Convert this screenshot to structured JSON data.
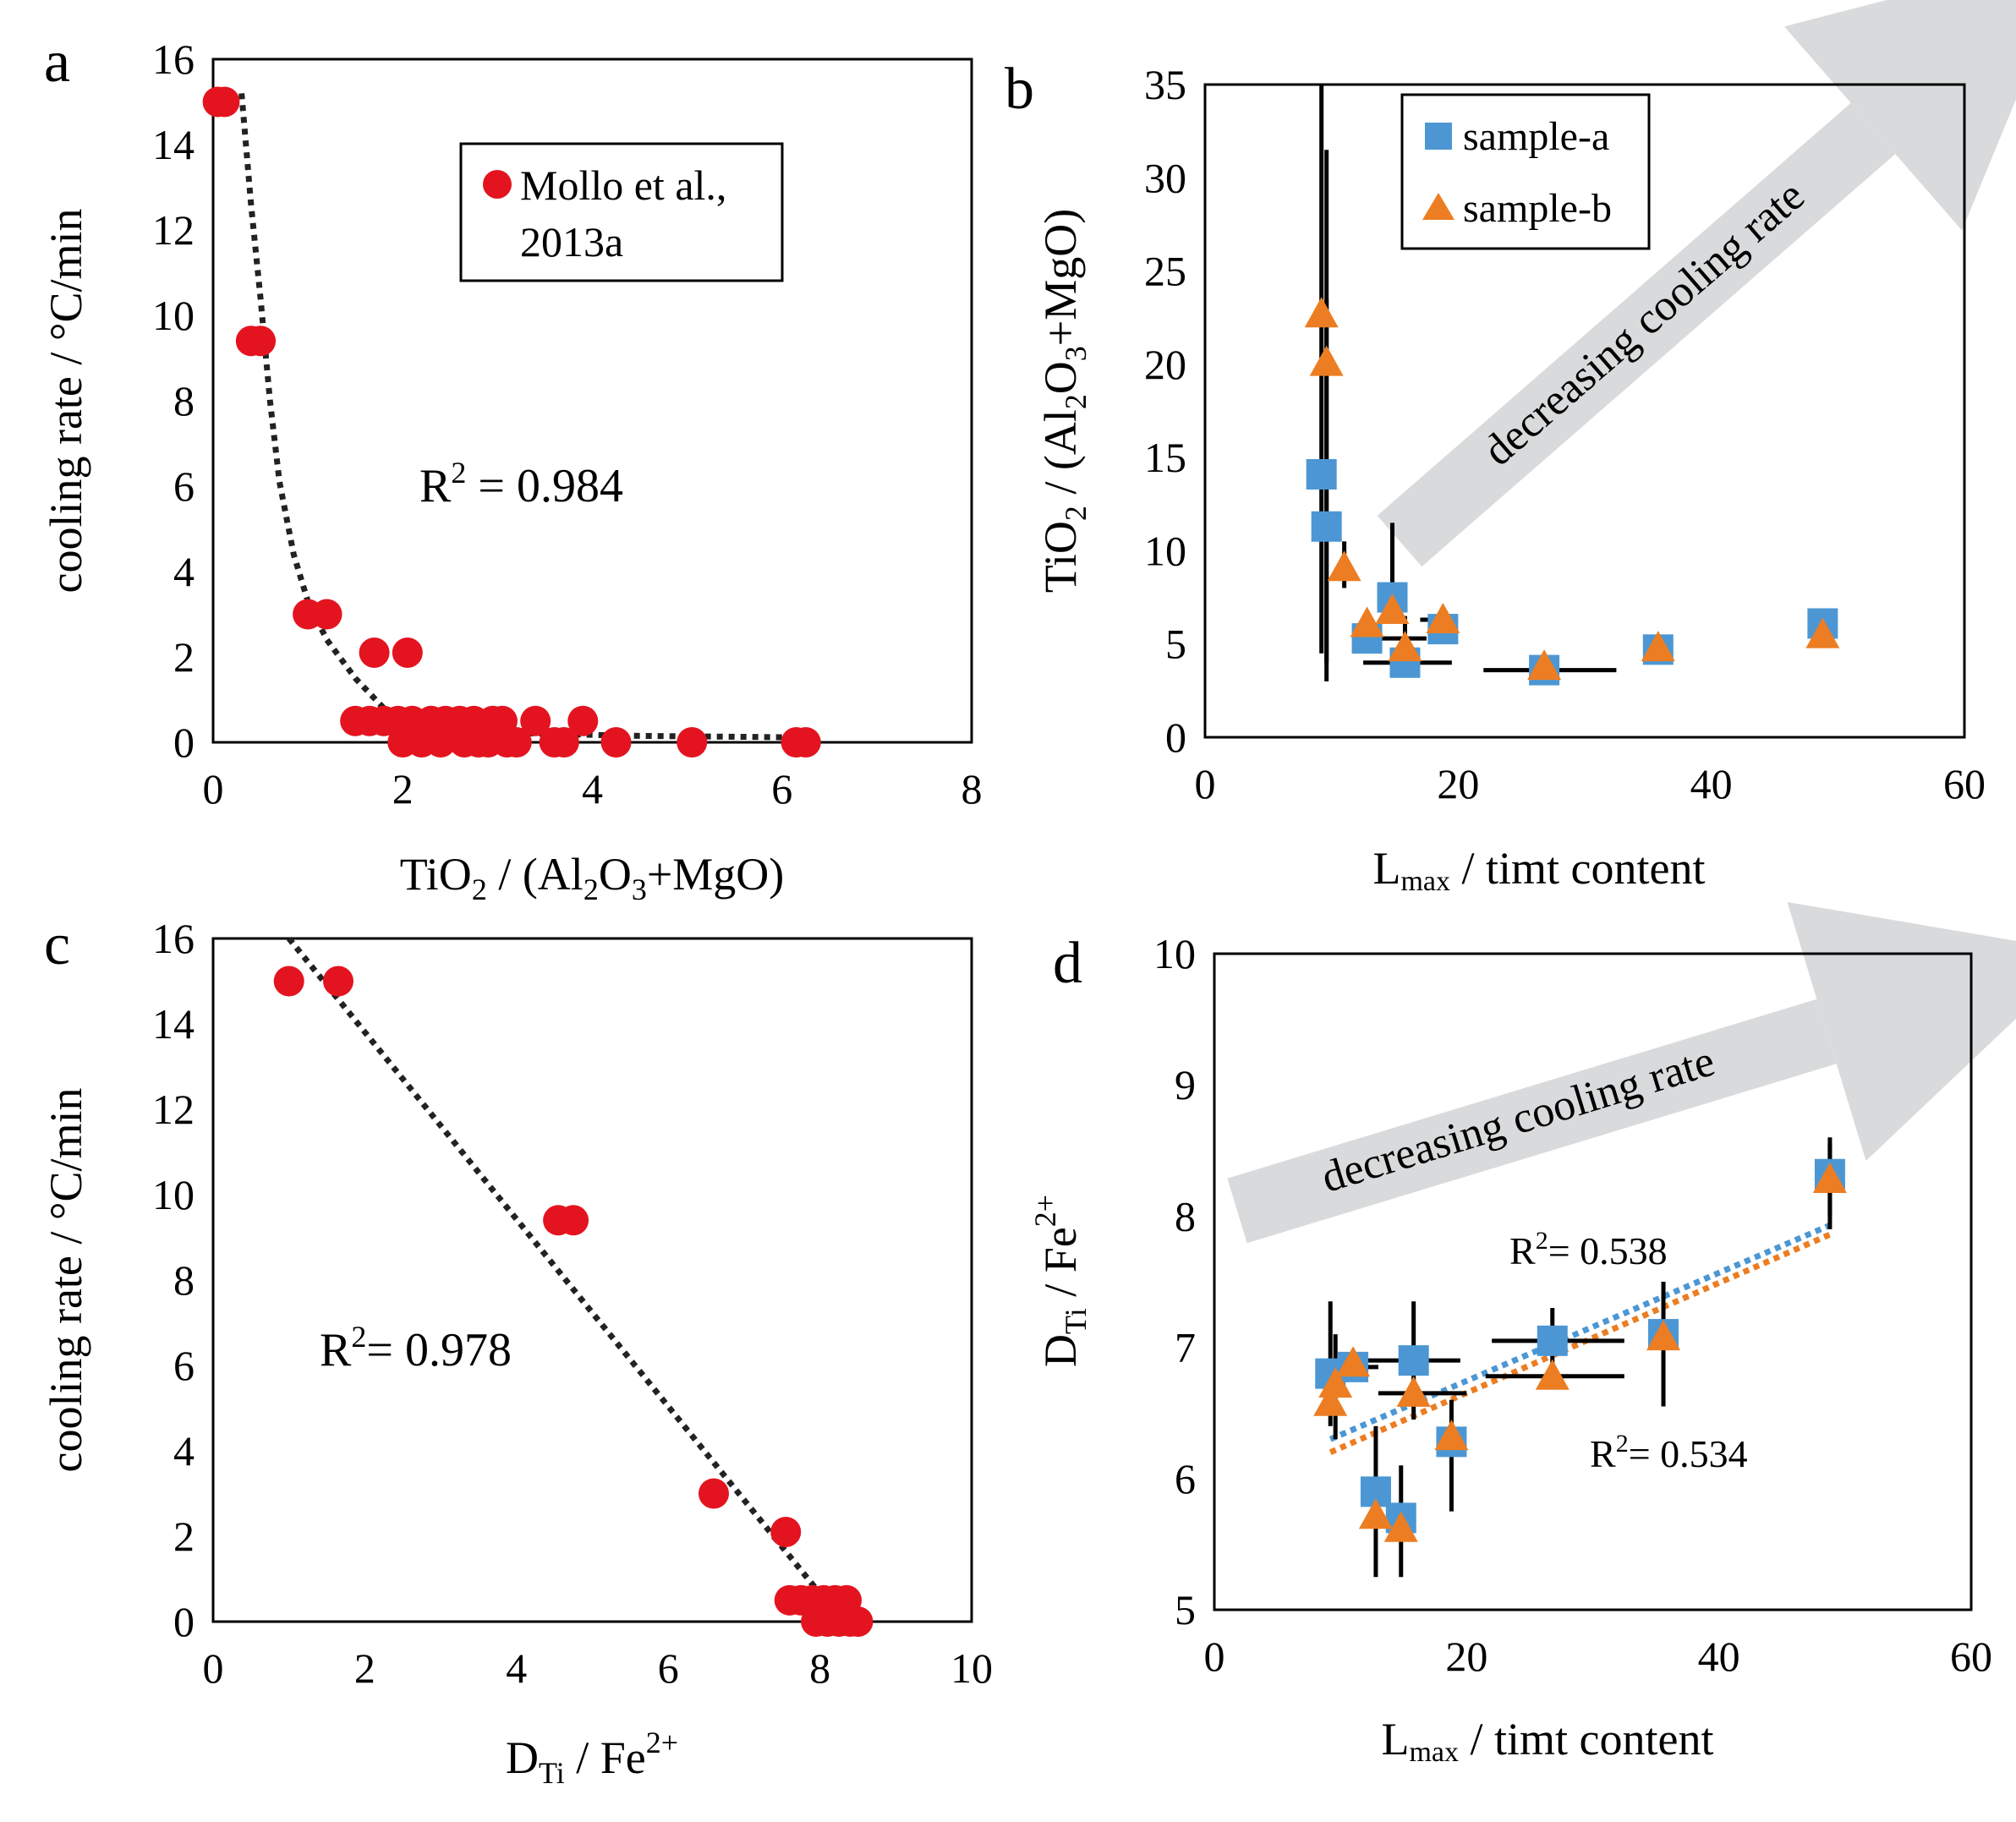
{
  "colors": {
    "red": "#e3141f",
    "blue": "#4c97d3",
    "orange": "#ec7d22",
    "arrow": "#d9dadb",
    "trend": "#222222"
  },
  "chart_data": [
    {
      "panel": "a",
      "type": "scatter",
      "xlabel": {
        "main": "TiO",
        "s1": "2",
        "mid": " / (Al",
        "s2": "2",
        "o": "O",
        "s3": "3",
        "end": "+MgO)"
      },
      "ylabel": "cooling rate / °C/min",
      "xlim": [
        0,
        8
      ],
      "ylim": [
        0,
        16
      ],
      "xticks": [
        "0",
        "2",
        "4",
        "6",
        "8"
      ],
      "yticks": [
        "0",
        "2",
        "4",
        "6",
        "8",
        "10",
        "12",
        "14",
        "16"
      ],
      "legend": {
        "line1": "Mollo et al.,",
        "line2": "2013a"
      },
      "r2": {
        "base": "R",
        "sup": "2",
        "rest": " = 0.984"
      },
      "points": [
        [
          0.05,
          15
        ],
        [
          0.12,
          15
        ],
        [
          0.4,
          9.4
        ],
        [
          0.5,
          9.4
        ],
        [
          1.0,
          3
        ],
        [
          1.2,
          3
        ],
        [
          1.5,
          0.5
        ],
        [
          1.7,
          2.1
        ],
        [
          2.05,
          2.1
        ],
        [
          1.65,
          0.5
        ],
        [
          1.8,
          0.5
        ],
        [
          1.95,
          0.5
        ],
        [
          2.0,
          0
        ],
        [
          2.1,
          0.5
        ],
        [
          2.2,
          0
        ],
        [
          2.3,
          0.5
        ],
        [
          2.4,
          0
        ],
        [
          2.45,
          0.5
        ],
        [
          2.6,
          0.5
        ],
        [
          2.65,
          0
        ],
        [
          2.75,
          0.5
        ],
        [
          2.8,
          0
        ],
        [
          2.9,
          0
        ],
        [
          2.95,
          0.5
        ],
        [
          3.05,
          0.5
        ],
        [
          3.1,
          0
        ],
        [
          3.2,
          0
        ],
        [
          3.4,
          0.5
        ],
        [
          3.6,
          0
        ],
        [
          3.7,
          0
        ],
        [
          3.9,
          0.5
        ],
        [
          4.25,
          0
        ],
        [
          5.05,
          0
        ],
        [
          6.15,
          0
        ],
        [
          6.25,
          0
        ]
      ],
      "trend": [
        [
          0.3,
          15.2
        ],
        [
          0.4,
          12.6
        ],
        [
          0.5,
          10.4
        ],
        [
          0.6,
          8.0
        ],
        [
          0.7,
          6.1
        ],
        [
          0.85,
          4.4
        ],
        [
          1.0,
          3.3
        ],
        [
          1.2,
          2.4
        ],
        [
          1.5,
          1.5
        ],
        [
          1.8,
          0.8
        ],
        [
          2.2,
          0.4
        ],
        [
          2.8,
          0.25
        ],
        [
          3.5,
          0.2
        ],
        [
          4.5,
          0.15
        ],
        [
          6.0,
          0.12
        ]
      ]
    },
    {
      "panel": "b",
      "type": "scatter",
      "xlabel": {
        "main": "L",
        "sub": "max",
        "rest": " / timt content"
      },
      "ylabel": {
        "main": "TiO",
        "s1": "2",
        "mid": " / (Al",
        "s2": "2",
        "o": "O",
        "s3": "3",
        "end": "+MgO)"
      },
      "xlim": [
        0,
        60
      ],
      "ylim": [
        0,
        35
      ],
      "xticks": [
        "0",
        "20",
        "40",
        "60"
      ],
      "yticks": [
        "0",
        "5",
        "10",
        "15",
        "20",
        "25",
        "30",
        "35"
      ],
      "arrow_label": "decreasing cooling rate",
      "series": [
        {
          "name": "sample-a",
          "marker": "square",
          "points": [
            [
              9.2,
              14.1
            ],
            [
              9.6,
              11.3
            ],
            [
              12.8,
              5.3
            ],
            [
              14.8,
              7.5
            ],
            [
              15.8,
              4.0
            ],
            [
              18.8,
              5.8
            ],
            [
              26.8,
              3.6
            ],
            [
              35.8,
              4.7
            ],
            [
              48.8,
              6.1
            ]
          ],
          "yerr": [
            [
              9.2,
              4.5,
              35.0
            ],
            [
              9.6,
              3.0,
              31.5
            ],
            [
              12.8,
              4.5,
              6.3
            ],
            [
              14.8,
              6.5,
              11.5
            ],
            [
              15.8,
              3.5,
              5.0
            ],
            [
              18.8,
              5.0,
              6.5
            ]
          ],
          "xerr": [
            [
              13.0,
              12.0,
              17.5
            ],
            [
              16.0,
              12.5,
              19.5
            ],
            [
              27.0,
              22.0,
              32.5
            ]
          ]
        },
        {
          "name": "sample-b",
          "marker": "triangle",
          "points": [
            [
              9.2,
              22.7
            ],
            [
              9.6,
              20.1
            ],
            [
              11.0,
              9.1
            ],
            [
              12.8,
              6.1
            ],
            [
              14.8,
              6.8
            ],
            [
              15.8,
              4.8
            ],
            [
              18.8,
              6.3
            ],
            [
              26.8,
              3.8
            ],
            [
              35.8,
              4.8
            ],
            [
              48.8,
              5.5
            ]
          ],
          "yerr": [
            [
              9.6,
              4.0,
              23.5
            ],
            [
              11.0,
              8.0,
              10.5
            ],
            [
              15.8,
              3.5,
              6.5
            ]
          ],
          "xerr": [
            [
              18.0,
              17.0,
              19.5
            ]
          ]
        }
      ]
    },
    {
      "panel": "c",
      "type": "scatter",
      "xlabel": {
        "main": "D",
        "sub": "Ti",
        "mid": " / Fe",
        "sup": "2+"
      },
      "ylabel": "cooling rate / °C/min",
      "xlim": [
        0,
        10
      ],
      "ylim": [
        0,
        16
      ],
      "xticks": [
        "0",
        "2",
        "4",
        "6",
        "8",
        "10"
      ],
      "yticks": [
        "0",
        "2",
        "4",
        "6",
        "8",
        "10",
        "12",
        "14",
        "16"
      ],
      "r2": {
        "base": "R",
        "sup": "2",
        "rest": "= 0.978"
      },
      "points": [
        [
          1.0,
          15
        ],
        [
          1.65,
          15
        ],
        [
          4.55,
          9.4
        ],
        [
          4.75,
          9.4
        ],
        [
          6.6,
          3
        ],
        [
          7.55,
          2.1
        ],
        [
          7.6,
          0.5
        ],
        [
          7.75,
          0.5
        ],
        [
          7.9,
          0.5
        ],
        [
          8.05,
          0.5
        ],
        [
          8.2,
          0.5
        ],
        [
          8.35,
          0.5
        ],
        [
          7.95,
          0
        ],
        [
          8.1,
          0
        ],
        [
          8.25,
          0
        ],
        [
          8.4,
          0
        ],
        [
          8.5,
          0
        ]
      ],
      "trend": [
        [
          1.0,
          16.0
        ],
        [
          8.3,
          0.0
        ]
      ]
    },
    {
      "panel": "d",
      "type": "scatter",
      "xlabel": {
        "main": "L",
        "sub": "max",
        "rest": " / timt content"
      },
      "ylabel": {
        "main": "D",
        "sub": "Ti",
        "mid": " / Fe",
        "sup": "2+"
      },
      "xlim": [
        0,
        60
      ],
      "ylim": [
        5,
        10
      ],
      "xticks": [
        "0",
        "20",
        "40",
        "60"
      ],
      "yticks": [
        "5",
        "6",
        "7",
        "8",
        "9",
        "10"
      ],
      "arrow_label": "decreasing cooling rate",
      "r2_a": {
        "base": "R",
        "sup": "2",
        "rest": "= 0.538"
      },
      "r2_b": {
        "base": "R",
        "sup": "2",
        "rest": "= 0.534"
      },
      "series": [
        {
          "name": "sample-a",
          "marker": "square",
          "points": [
            [
              9.2,
              6.8
            ],
            [
              11.0,
              6.85
            ],
            [
              12.8,
              5.9
            ],
            [
              14.8,
              5.7
            ],
            [
              15.8,
              6.9
            ],
            [
              18.8,
              6.28
            ],
            [
              26.8,
              7.05
            ],
            [
              35.6,
              7.1
            ],
            [
              48.8,
              8.32
            ]
          ],
          "trend": [
            [
              9.2,
              6.3
            ],
            [
              48.8,
              7.93
            ]
          ],
          "yerr": [
            [
              9.2,
              6.4,
              7.35
            ],
            [
              12.8,
              5.25,
              6.4
            ],
            [
              14.8,
              5.25,
              6.1
            ],
            [
              15.8,
              6.45,
              7.35
            ],
            [
              26.8,
              6.8,
              7.3
            ],
            [
              35.6,
              6.55,
              7.5
            ],
            [
              48.8,
              8.0,
              8.6
            ]
          ],
          "xerr": [
            [
              10.5,
              9.0,
              13.0
            ],
            [
              15.8,
              11.0,
              19.5
            ],
            [
              26.8,
              22.0,
              32.5
            ]
          ]
        },
        {
          "name": "sample-b",
          "marker": "triangle",
          "points": [
            [
              9.2,
              6.58
            ],
            [
              9.6,
              6.72
            ],
            [
              11.0,
              6.88
            ],
            [
              12.8,
              5.72
            ],
            [
              14.8,
              5.62
            ],
            [
              15.8,
              6.65
            ],
            [
              18.8,
              6.32
            ],
            [
              26.8,
              6.78
            ],
            [
              35.6,
              7.08
            ],
            [
              48.8,
              8.28
            ]
          ],
          "trend": [
            [
              9.2,
              6.2
            ],
            [
              48.8,
              7.86
            ]
          ],
          "yerr": [
            [
              9.6,
              6.3,
              7.1
            ],
            [
              18.8,
              5.75,
              6.6
            ],
            [
              48.8,
              7.9,
              8.55
            ]
          ],
          "xerr": [
            [
              15.8,
              13.0,
              20.0
            ],
            [
              26.8,
              21.5,
              32.5
            ]
          ]
        }
      ]
    }
  ]
}
